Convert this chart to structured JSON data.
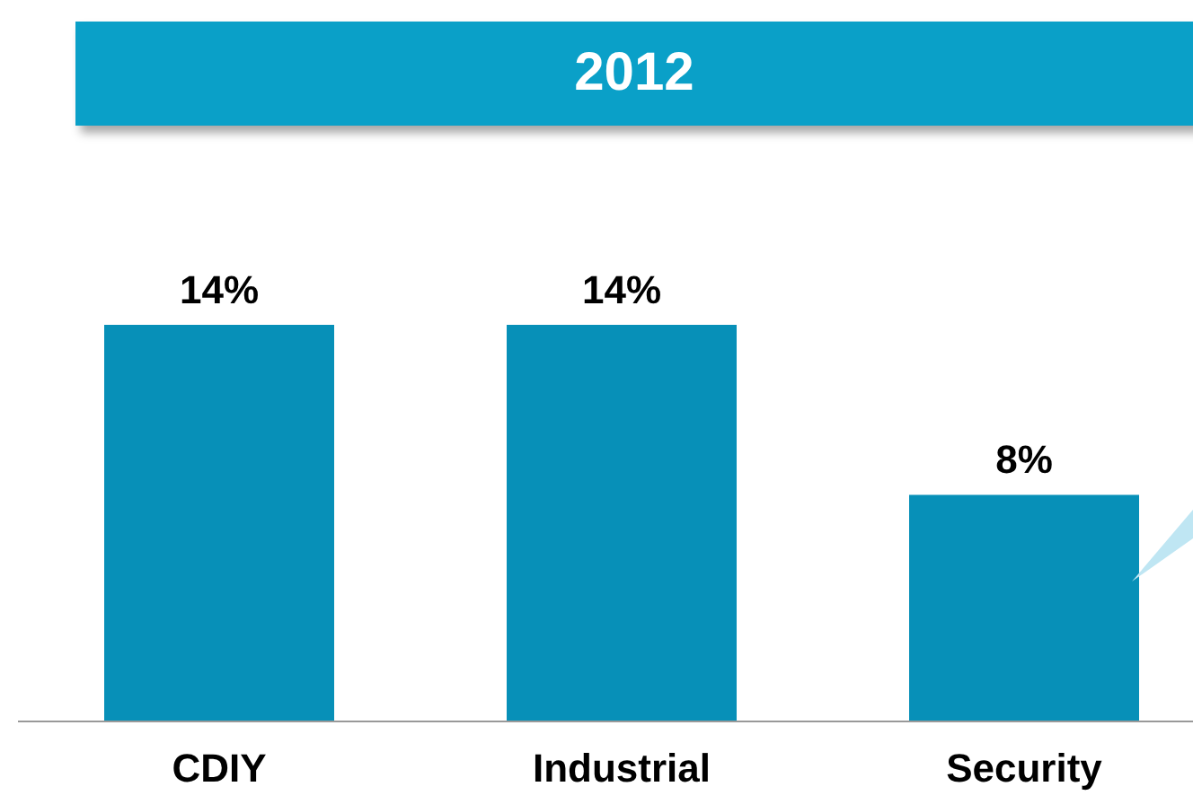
{
  "chart_data": {
    "type": "bar",
    "title": "2012",
    "categories": [
      "CDIY",
      "Industrial",
      "Security"
    ],
    "values": [
      14,
      14,
      8
    ],
    "color": "#0790b8",
    "value_labels": [
      "14%",
      "14%",
      "8%"
    ]
  }
}
